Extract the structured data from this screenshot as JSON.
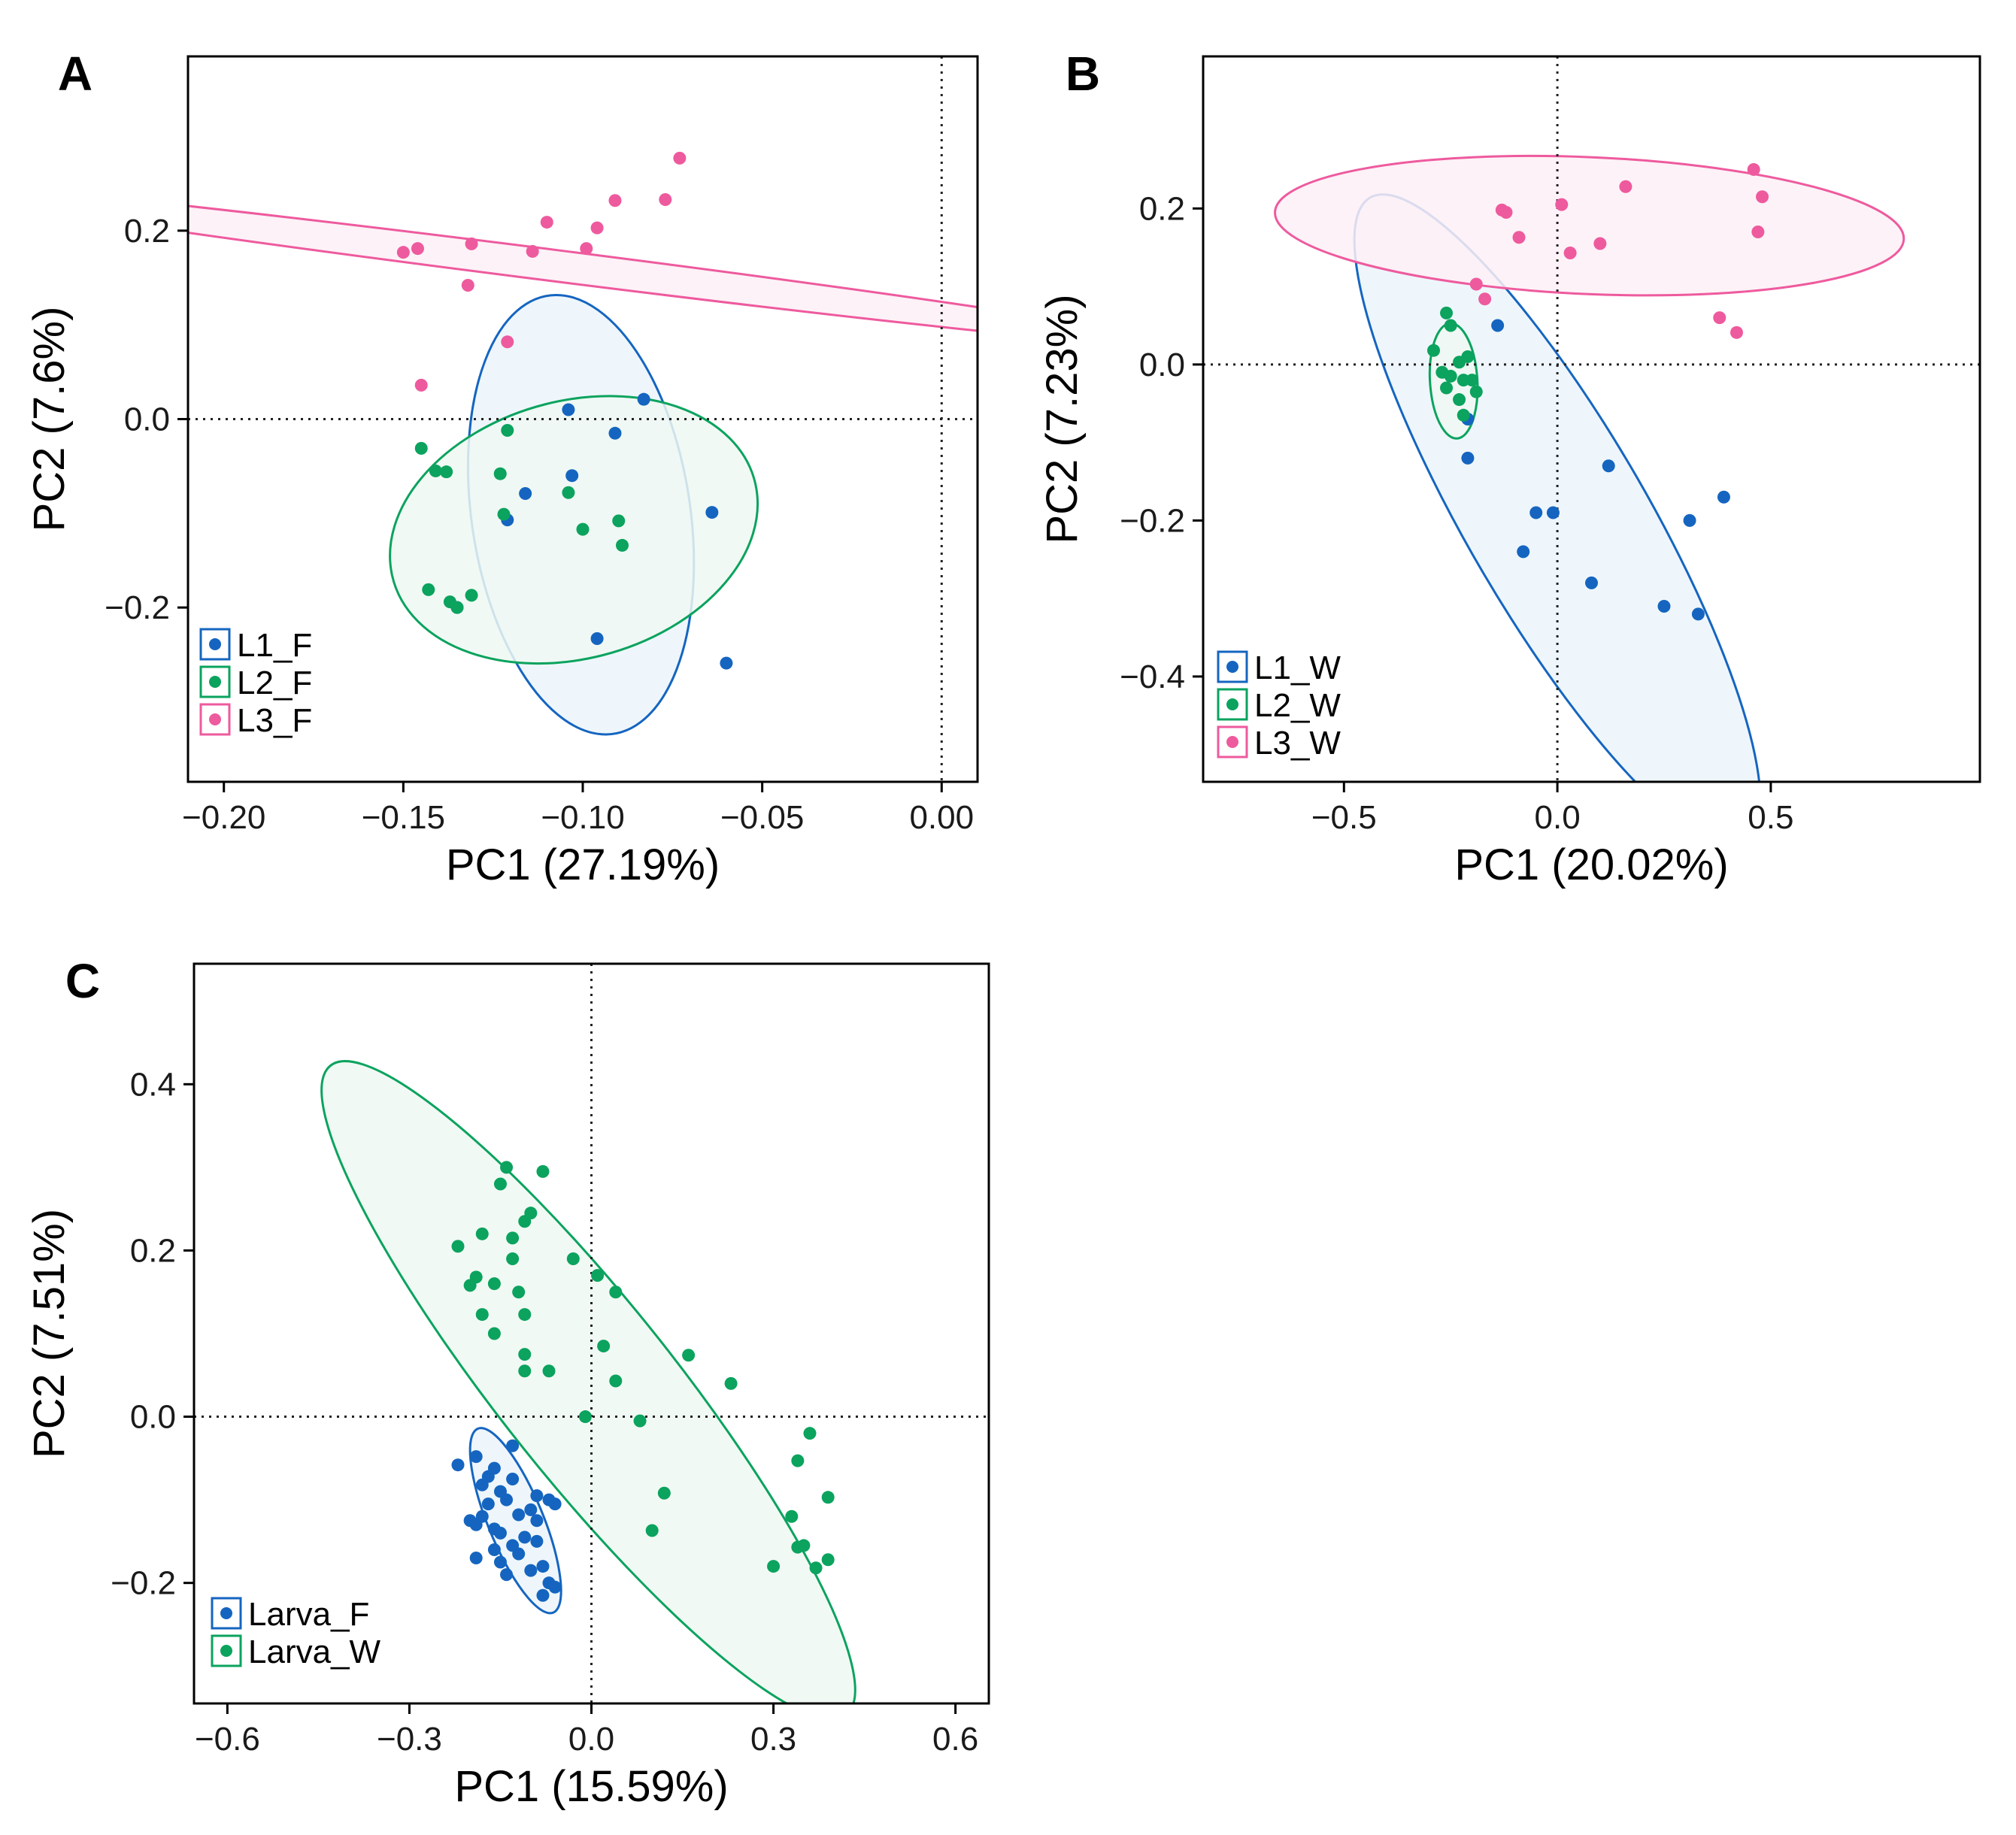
{
  "colors": {
    "L1": "#1565C0",
    "L2": "#0BA35E",
    "L3": "#EE5A9E",
    "L1_fill": "#EBF5FA",
    "L2_fill": "#EEF8F2",
    "L3_fill": "#FDF0F6"
  },
  "chart_data": [
    {
      "panel": "A",
      "type": "scatter",
      "xlabel": "PC1 (27.19%)",
      "ylabel": "PC2 (7.6%)",
      "xlim": [
        -0.21,
        0.01
      ],
      "ylim": [
        -0.385,
        0.385
      ],
      "xticks": [
        -0.2,
        -0.15,
        -0.1,
        -0.05,
        0.0
      ],
      "xtick_labels": [
        "−0.20",
        "−0.15",
        "−0.10",
        "−0.05",
        "0.00"
      ],
      "yticks": [
        -0.2,
        0.0,
        0.2
      ],
      "ytick_labels": [
        "−0.2",
        "0.0",
        "0.2"
      ],
      "ref_x": 0,
      "ref_y": 0,
      "legend": "bottom-left",
      "series": [
        {
          "name": "L1_F",
          "color_key": "L1",
          "ellipse": {
            "cx": -0.1005,
            "cy": -0.1015,
            "rx": 0.0307,
            "ry": 0.2333,
            "angle": 0.03
          },
          "x": [
            -0.083,
            -0.104,
            -0.103,
            -0.091,
            -0.116,
            -0.121,
            -0.064,
            -0.096,
            -0.135,
            -0.06
          ],
          "y": [
            0.021,
            0.01,
            -0.06,
            -0.015,
            -0.079,
            -0.107,
            -0.099,
            -0.233,
            -0.2,
            -0.259
          ]
        },
        {
          "name": "L2_F",
          "color_key": "L2",
          "ellipse": {
            "cx": -0.1025,
            "cy": -0.1175,
            "rx": 0.0501,
            "ry": 0.1423,
            "angle": -0.08
          },
          "x": [
            -0.121,
            -0.145,
            -0.141,
            -0.138,
            -0.123,
            -0.122,
            -0.104,
            -0.1,
            -0.09,
            -0.089,
            -0.143,
            -0.137,
            -0.131,
            -0.135
          ],
          "y": [
            -0.012,
            -0.031,
            -0.055,
            -0.056,
            -0.058,
            -0.101,
            -0.078,
            -0.117,
            -0.108,
            -0.134,
            -0.181,
            -0.194,
            -0.187,
            -0.2
          ]
        },
        {
          "name": "L3_F",
          "color_key": "L3",
          "ellipse": {
            "cx": -0.1115,
            "cy": 0.1647,
            "rx": 0.0151,
            "ry": 0.2033,
            "angle": 1.12
          },
          "x": [
            -0.073,
            -0.077,
            -0.091,
            -0.096,
            -0.099,
            -0.11,
            -0.114,
            -0.131,
            -0.132,
            -0.146,
            -0.15,
            -0.121,
            -0.145
          ],
          "y": [
            0.277,
            0.233,
            0.232,
            0.203,
            0.181,
            0.209,
            0.178,
            0.186,
            0.142,
            0.181,
            0.177,
            0.082,
            0.036
          ]
        }
      ]
    },
    {
      "panel": "B",
      "type": "scatter",
      "xlabel": "PC1 (20.02%)",
      "ylabel": "PC2 (7.23%)",
      "xlim": [
        -0.83,
        0.99
      ],
      "ylim": [
        -0.535,
        0.395
      ],
      "xticks": [
        -0.5,
        0.0,
        0.5
      ],
      "xtick_labels": [
        "−0.5",
        "0.0",
        "0.5"
      ],
      "yticks": [
        -0.4,
        -0.2,
        0.0,
        0.2
      ],
      "ytick_labels": [
        "−0.4",
        "−0.2",
        "0.0",
        "0.2"
      ],
      "ref_x": 0,
      "ref_y": 0,
      "legend": "bottom-left",
      "series": [
        {
          "name": "L1_W",
          "color_key": "L1",
          "ellipse": {
            "cx": 0.0,
            "cy": -0.2,
            "rx": 0.166,
            "ry": 0.611,
            "angle": 0.86
          },
          "x": [
            -0.14,
            -0.21,
            -0.21,
            0.12,
            0.39,
            0.31,
            -0.05,
            -0.01,
            -0.08,
            0.08,
            0.25,
            0.33
          ],
          "y": [
            0.05,
            -0.07,
            -0.12,
            -0.13,
            -0.17,
            -0.2,
            -0.19,
            -0.19,
            -0.24,
            -0.28,
            -0.31,
            -0.32
          ]
        },
        {
          "name": "L2_W",
          "color_key": "L2",
          "ellipse": {
            "cx": -0.243,
            "cy": -0.021,
            "rx": 0.0551,
            "ry": 0.0745,
            "angle": 0.2
          },
          "x": [
            -0.26,
            -0.25,
            -0.29,
            -0.23,
            -0.21,
            -0.27,
            -0.25,
            -0.22,
            -0.2,
            -0.26,
            -0.23,
            -0.19,
            -0.22
          ],
          "y": [
            0.066,
            0.05,
            0.018,
            0.003,
            0.01,
            -0.01,
            -0.015,
            -0.02,
            -0.02,
            -0.03,
            -0.045,
            -0.035,
            -0.065
          ]
        },
        {
          "name": "L3_W",
          "color_key": "L3",
          "ellipse": {
            "cx": 0.075,
            "cy": 0.178,
            "rx": 0.0878,
            "ry": 0.7369,
            "angle": 1.548
          },
          "x": [
            0.16,
            0.46,
            0.48,
            0.01,
            -0.13,
            -0.12,
            -0.09,
            0.03,
            0.1,
            0.47,
            -0.19,
            -0.17,
            0.38,
            0.42
          ],
          "y": [
            0.228,
            0.25,
            0.215,
            0.205,
            0.198,
            0.195,
            0.163,
            0.143,
            0.155,
            0.17,
            0.103,
            0.084,
            0.06,
            0.041
          ]
        }
      ]
    },
    {
      "panel": "C",
      "type": "scatter",
      "xlabel": "PC1 (15.59%)",
      "ylabel": "PC2 (7.51%)",
      "xlim": [
        -0.655,
        0.655
      ],
      "ylim": [
        -0.345,
        0.545
      ],
      "xticks": [
        -0.6,
        -0.3,
        0.0,
        0.3,
        0.6
      ],
      "xtick_labels": [
        "−0.6",
        "−0.3",
        "0.0",
        "0.3",
        "0.6"
      ],
      "yticks": [
        -0.2,
        0.0,
        0.2,
        0.4
      ],
      "ytick_labels": [
        "−0.2",
        "0.0",
        "0.2",
        "0.4"
      ],
      "ref_x": 0,
      "ref_y": 0,
      "legend": "bottom-left",
      "series": [
        {
          "name": "Larva_F",
          "color_key": "L1",
          "ellipse": {
            "cx": -0.125,
            "cy": -0.125,
            "rx": 0.0427,
            "ry": 0.1273,
            "angle": 0.54
          },
          "x": [
            -0.13,
            -0.19,
            -0.22,
            -0.16,
            -0.17,
            -0.18,
            -0.13,
            -0.15,
            -0.14,
            -0.17,
            -0.09,
            -0.07,
            -0.06,
            -0.1,
            -0.12,
            -0.18,
            -0.2,
            -0.19,
            -0.16,
            -0.15,
            -0.11,
            -0.09,
            -0.13,
            -0.16,
            -0.19,
            -0.15,
            -0.08,
            -0.1,
            -0.07,
            -0.06,
            -0.08,
            -0.12,
            -0.09,
            -0.14
          ],
          "y": [
            -0.035,
            -0.048,
            -0.058,
            -0.062,
            -0.072,
            -0.082,
            -0.075,
            -0.09,
            -0.1,
            -0.105,
            -0.095,
            -0.1,
            -0.105,
            -0.112,
            -0.118,
            -0.12,
            -0.125,
            -0.13,
            -0.135,
            -0.14,
            -0.145,
            -0.15,
            -0.155,
            -0.16,
            -0.17,
            -0.175,
            -0.18,
            -0.185,
            -0.2,
            -0.205,
            -0.215,
            -0.165,
            -0.125,
            -0.19
          ]
        },
        {
          "name": "Larva_W",
          "color_key": "L2",
          "ellipse": {
            "cx": -0.005,
            "cy": 0.032,
            "rx": 0.1237,
            "ry": 0.5785,
            "angle": 0.843
          },
          "x": [
            -0.14,
            -0.08,
            -0.15,
            -0.1,
            -0.11,
            -0.18,
            -0.13,
            -0.22,
            -0.03,
            -0.13,
            0.01,
            -0.19,
            -0.2,
            -0.16,
            0.04,
            -0.12,
            -0.18,
            -0.11,
            -0.16,
            -0.11,
            0.02,
            0.16,
            -0.11,
            -0.07,
            0.23,
            0.04,
            -0.01,
            0.08,
            0.36,
            0.34,
            0.12,
            0.39,
            0.33,
            0.1,
            0.35,
            0.34,
            0.39,
            0.3,
            0.37
          ],
          "y": [
            0.3,
            0.295,
            0.28,
            0.245,
            0.235,
            0.22,
            0.215,
            0.205,
            0.19,
            0.19,
            0.17,
            0.168,
            0.158,
            0.16,
            0.15,
            0.15,
            0.123,
            0.123,
            0.1,
            0.075,
            0.085,
            0.074,
            0.055,
            0.055,
            0.04,
            0.043,
            0.0,
            -0.005,
            -0.02,
            -0.053,
            -0.092,
            -0.097,
            -0.12,
            -0.137,
            -0.155,
            -0.157,
            -0.172,
            -0.18,
            -0.182
          ]
        }
      ]
    }
  ]
}
